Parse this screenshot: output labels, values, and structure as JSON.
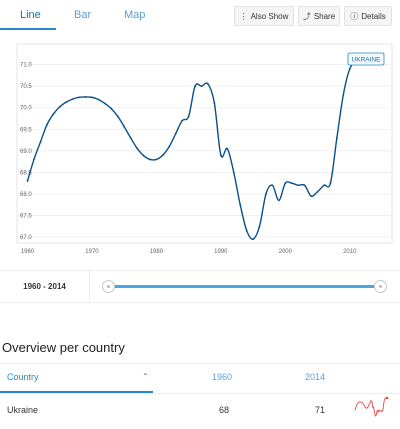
{
  "tabs": [
    {
      "label": "Line",
      "active": true
    },
    {
      "label": "Bar",
      "active": false
    },
    {
      "label": "Map",
      "active": false
    }
  ],
  "toolbar": {
    "also_show_label": "Also Show",
    "share_label": "Share",
    "details_label": "Details"
  },
  "chart_data": {
    "type": "line",
    "title": "",
    "xlabel": "",
    "ylabel": "",
    "xlim": [
      1960,
      2015
    ],
    "ylim": [
      67.0,
      71.2
    ],
    "x_ticks": [
      "1960",
      "1970",
      "1980",
      "1990",
      "2000",
      "2010"
    ],
    "y_ticks": [
      "67.0",
      "67.5",
      "68.0",
      "68.5",
      "69.0",
      "69.5",
      "70.0",
      "70.5",
      "71.0"
    ],
    "grid": true,
    "series": [
      {
        "name": "UKRAINE",
        "color": "#0b4f8a",
        "x": [
          1960,
          1961,
          1962,
          1963,
          1964,
          1965,
          1966,
          1967,
          1968,
          1969,
          1970,
          1971,
          1972,
          1973,
          1974,
          1975,
          1976,
          1977,
          1978,
          1979,
          1980,
          1981,
          1982,
          1983,
          1984,
          1985,
          1986,
          1987,
          1988,
          1989,
          1990,
          1991,
          1992,
          1993,
          1994,
          1995,
          1996,
          1997,
          1998,
          1999,
          2000,
          2001,
          2002,
          2003,
          2004,
          2005,
          2006,
          2007,
          2008,
          2009,
          2010,
          2011,
          2012,
          2013,
          2014
        ],
        "values": [
          68.3,
          68.8,
          69.2,
          69.6,
          69.85,
          70.02,
          70.13,
          70.2,
          70.24,
          70.25,
          70.24,
          70.19,
          70.1,
          69.98,
          69.8,
          69.56,
          69.3,
          69.06,
          68.89,
          68.8,
          68.8,
          68.9,
          69.1,
          69.4,
          69.7,
          69.8,
          70.5,
          70.5,
          70.55,
          70.1,
          68.9,
          69.05,
          68.5,
          67.75,
          67.15,
          66.95,
          67.25,
          68.0,
          68.2,
          67.85,
          68.25,
          68.25,
          68.2,
          68.2,
          67.95,
          68.05,
          68.2,
          68.25,
          69.3,
          70.3,
          70.9,
          71.08,
          71.15,
          71.2,
          71.2
        ]
      }
    ],
    "tooltip_label": "UKRAINE"
  },
  "range": {
    "label": "1960 - 2014"
  },
  "overview": {
    "title": "Overview per country",
    "columns": [
      "Country",
      "1960",
      "2014"
    ],
    "rows": [
      {
        "country": "Ukraine",
        "v1960": "68",
        "v2014": "71"
      }
    ]
  }
}
